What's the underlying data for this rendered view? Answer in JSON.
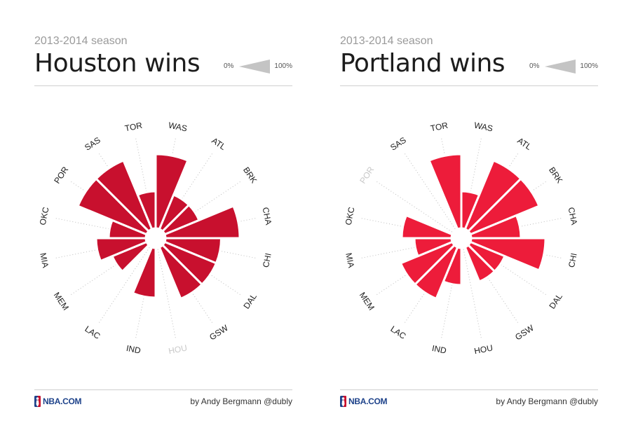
{
  "colors": {
    "accent": "#c8102e",
    "legend": "#c4c4c4",
    "muted": "#c8c8c8",
    "text": "#1c1c1c"
  },
  "panels": [
    {
      "season": "2013-2014 season",
      "title": "Houston wins",
      "legend": {
        "low": "0%",
        "high": "100%"
      },
      "logo": "NBA.COM",
      "credit": "by Andy Bergmann @dubly"
    },
    {
      "season": "2013-2014 season",
      "title": "Portland wins",
      "legend": {
        "low": "0%",
        "high": "100%"
      },
      "logo": "NBA.COM",
      "credit": "by Andy Bergmann @dubly"
    }
  ],
  "chart_data": [
    {
      "type": "polar-area",
      "title": "Houston wins",
      "categories": [
        "WAS",
        "ATL",
        "BRK",
        "CHA",
        "CHI",
        "DAL",
        "GSW",
        "HOU",
        "IND",
        "LAC",
        "MEM",
        "MIA",
        "OKC",
        "POR",
        "SAS",
        "TOR"
      ],
      "values": [
        1.0,
        0.5,
        0.5,
        1.0,
        0.75,
        0.75,
        0.75,
        null,
        0.67,
        0.0,
        0.5,
        0.67,
        0.5,
        1.0,
        1.0,
        0.5
      ],
      "color": "#c8102e",
      "muted": [
        "HOU"
      ]
    },
    {
      "type": "polar-area",
      "title": "Portland wins",
      "categories": [
        "WAS",
        "ATL",
        "BRK",
        "CHA",
        "CHI",
        "DAL",
        "GSW",
        "HOU",
        "IND",
        "LAC",
        "MEM",
        "MIA",
        "OKC",
        "POR",
        "SAS",
        "TOR"
      ],
      "values": [
        0.5,
        1.0,
        1.0,
        0.67,
        1.0,
        0.5,
        0.5,
        0.0,
        0.5,
        0.75,
        0.75,
        0.5,
        0.67,
        null,
        0.0,
        1.0
      ],
      "color": "#ed1c3a",
      "muted": [
        "POR"
      ]
    }
  ]
}
